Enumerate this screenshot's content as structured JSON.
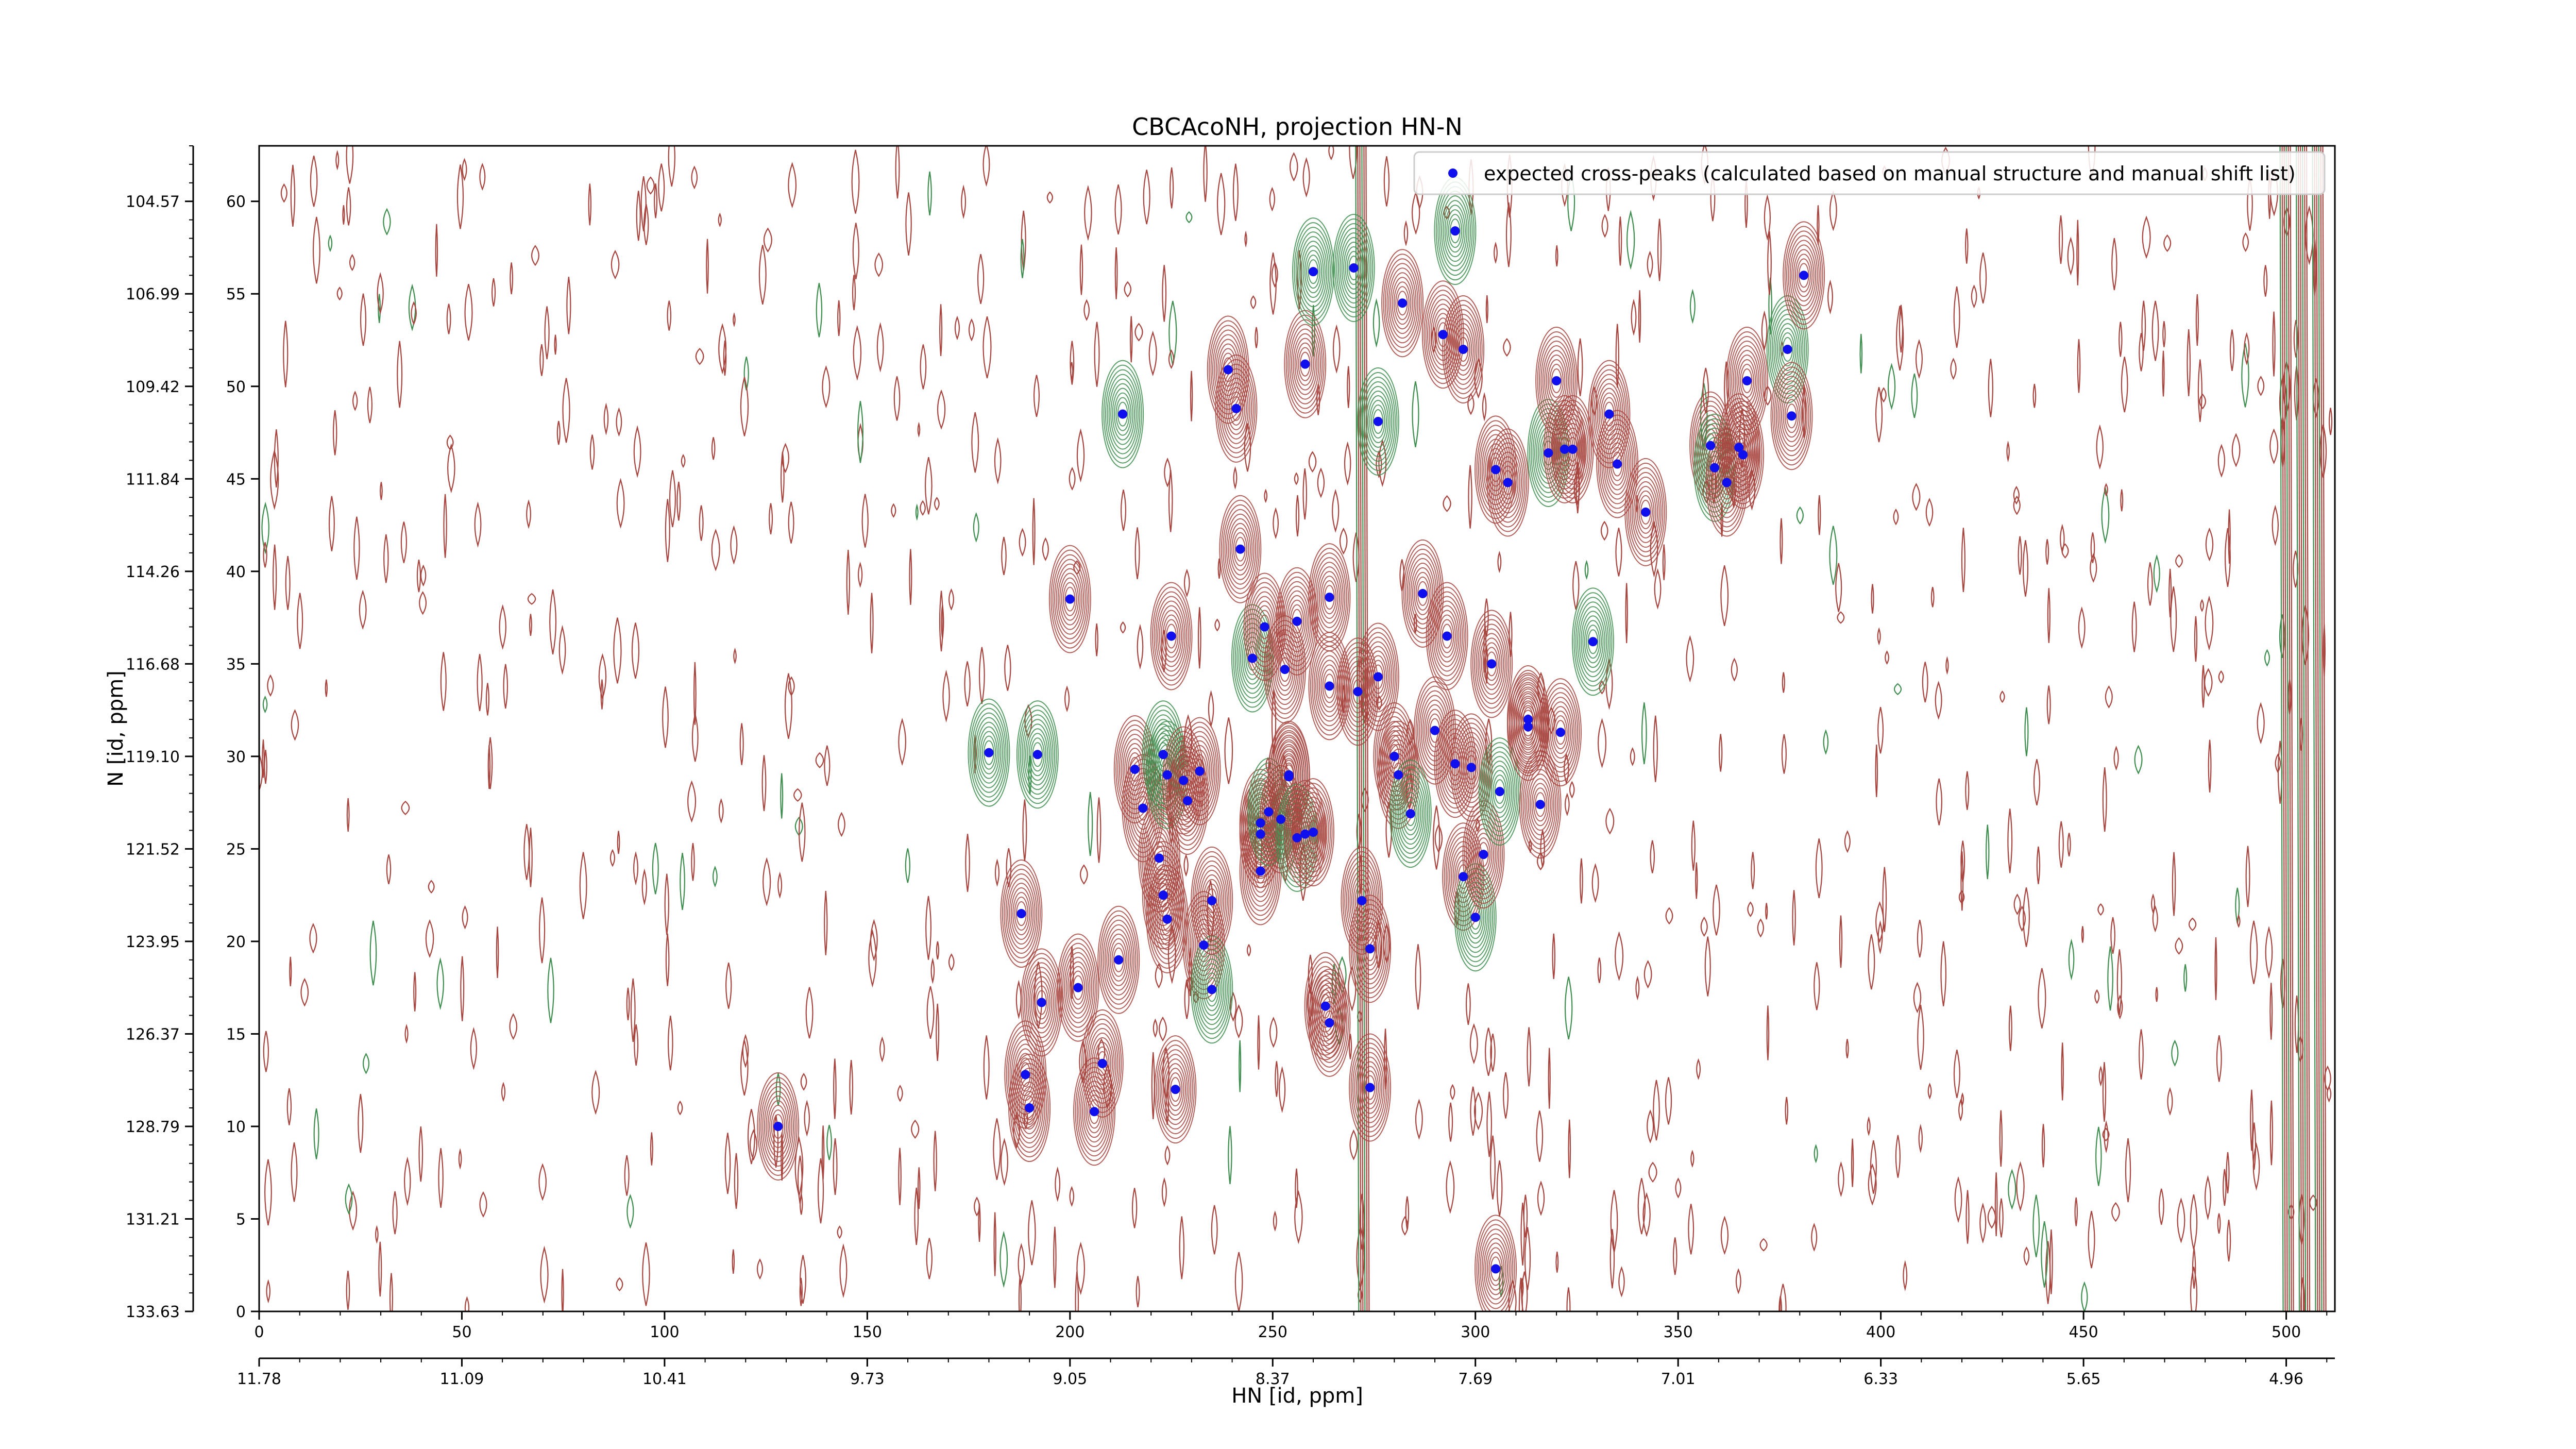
{
  "chart_data": {
    "type": "scatter",
    "title": "CBCAcoNH, projection HN-N",
    "xlabel": "HN [id, ppm]",
    "ylabel": "N [id, ppm]",
    "xlim": [
      0,
      512
    ],
    "ylim": [
      0,
      63
    ],
    "x_ticks": [
      0,
      50,
      100,
      150,
      200,
      250,
      300,
      350,
      400,
      450,
      500
    ],
    "y_ticks": [
      0,
      5,
      10,
      15,
      20,
      25,
      30,
      35,
      40,
      45,
      50,
      55,
      60
    ],
    "x_ppm_ticks": [
      {
        "pos": 0,
        "label": "11.78"
      },
      {
        "pos": 50,
        "label": "11.09"
      },
      {
        "pos": 100,
        "label": "10.41"
      },
      {
        "pos": 150,
        "label": "9.73"
      },
      {
        "pos": 200,
        "label": "9.05"
      },
      {
        "pos": 250,
        "label": "8.37"
      },
      {
        "pos": 300,
        "label": "7.69"
      },
      {
        "pos": 350,
        "label": "7.01"
      },
      {
        "pos": 400,
        "label": "6.33"
      },
      {
        "pos": 450,
        "label": "5.65"
      },
      {
        "pos": 500,
        "label": "4.96"
      }
    ],
    "y_ppm_ticks": [
      {
        "pos": 0,
        "label": "133.63"
      },
      {
        "pos": 5,
        "label": "131.21"
      },
      {
        "pos": 10,
        "label": "128.79"
      },
      {
        "pos": 15,
        "label": "126.37"
      },
      {
        "pos": 20,
        "label": "123.95"
      },
      {
        "pos": 25,
        "label": "121.52"
      },
      {
        "pos": 30,
        "label": "119.10"
      },
      {
        "pos": 35,
        "label": "116.68"
      },
      {
        "pos": 40,
        "label": "114.26"
      },
      {
        "pos": 45,
        "label": "111.84"
      },
      {
        "pos": 50,
        "label": "109.42"
      },
      {
        "pos": 55,
        "label": "106.99"
      },
      {
        "pos": 60,
        "label": "104.57"
      }
    ],
    "legend": {
      "label": "expected cross-peaks (calculated based on manual structure and manual shift list)",
      "placement": "top-right"
    },
    "colors": {
      "peak_marker": "#1010ee",
      "positive_contour": "#a8453f",
      "negative_contour": "#3e8f4f"
    },
    "series": [
      {
        "name": "expected cross-peaks (calculated based on manual structure and manual shift list)",
        "points": [
          [
            128,
            10
          ],
          [
            180,
            30.2
          ],
          [
            188,
            21.5
          ],
          [
            189,
            12.8
          ],
          [
            190,
            11
          ],
          [
            193,
            16.7
          ],
          [
            192,
            30.1
          ],
          [
            200,
            38.5
          ],
          [
            202,
            17.5
          ],
          [
            206,
            10.8
          ],
          [
            208,
            13.4
          ],
          [
            213,
            48.5
          ],
          [
            212,
            19
          ],
          [
            218,
            27.2
          ],
          [
            216,
            29.3
          ],
          [
            222,
            24.5
          ],
          [
            223,
            30.1
          ],
          [
            223,
            22.5
          ],
          [
            224,
            21.2
          ],
          [
            225,
            36.5
          ],
          [
            226,
            12
          ],
          [
            224,
            29
          ],
          [
            228,
            28.7
          ],
          [
            229,
            27.6
          ],
          [
            232,
            29.2
          ],
          [
            233,
            19.8
          ],
          [
            235,
            17.4
          ],
          [
            235,
            22.2
          ],
          [
            239,
            50.9
          ],
          [
            241,
            48.8
          ],
          [
            242,
            41.2
          ],
          [
            245,
            35.3
          ],
          [
            247,
            26.4
          ],
          [
            247,
            25.8
          ],
          [
            247,
            23.8
          ],
          [
            248,
            37
          ],
          [
            249,
            27
          ],
          [
            252,
            26.6
          ],
          [
            253,
            34.7
          ],
          [
            254,
            28.9
          ],
          [
            254,
            29
          ],
          [
            256,
            25.6
          ],
          [
            256,
            37.3
          ],
          [
            258,
            25.8
          ],
          [
            260,
            25.9
          ],
          [
            258,
            51.2
          ],
          [
            260,
            56.2
          ],
          [
            263,
            16.5
          ],
          [
            264,
            15.6
          ],
          [
            264,
            33.8
          ],
          [
            264,
            38.6
          ],
          [
            270,
            56.4
          ],
          [
            271,
            33.5
          ],
          [
            272,
            22.2
          ],
          [
            274,
            19.6
          ],
          [
            274,
            12.1
          ],
          [
            276,
            48.1
          ],
          [
            276,
            34.3
          ],
          [
            280,
            30
          ],
          [
            281,
            29
          ],
          [
            282,
            54.5
          ],
          [
            284,
            26.9
          ],
          [
            287,
            38.8
          ],
          [
            290,
            31.4
          ],
          [
            292,
            52.8
          ],
          [
            293,
            36.5
          ],
          [
            295,
            58.4
          ],
          [
            295,
            29.6
          ],
          [
            297,
            52
          ],
          [
            297,
            23.5
          ],
          [
            299,
            29.4
          ],
          [
            300,
            21.3
          ],
          [
            302,
            24.7
          ],
          [
            304,
            35
          ],
          [
            305,
            2.3
          ],
          [
            305,
            45.5
          ],
          [
            306,
            28.1
          ],
          [
            308,
            44.8
          ],
          [
            313,
            32
          ],
          [
            313,
            31.6
          ],
          [
            316,
            27.4
          ],
          [
            318,
            46.4
          ],
          [
            320,
            50.3
          ],
          [
            321,
            31.3
          ],
          [
            322,
            46.6
          ],
          [
            324,
            46.6
          ],
          [
            329,
            36.2
          ],
          [
            333,
            48.5
          ],
          [
            335,
            45.8
          ],
          [
            342,
            43.2
          ],
          [
            358,
            46.8
          ],
          [
            359,
            45.6
          ],
          [
            362,
            44.8
          ],
          [
            365,
            46.7
          ],
          [
            366,
            46.3
          ],
          [
            367,
            50.3
          ],
          [
            377,
            52
          ],
          [
            378,
            48.4
          ],
          [
            381,
            56
          ]
        ]
      }
    ]
  }
}
